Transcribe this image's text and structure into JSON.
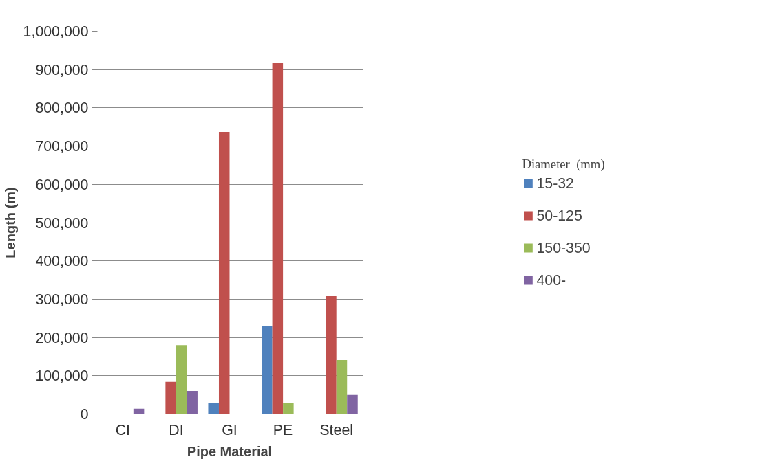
{
  "chart_data": {
    "type": "bar",
    "xlabel": "Pipe Material",
    "ylabel": "Length (m)",
    "legend_title": "Diameter  (mm)",
    "categories": [
      "CI",
      "DI",
      "GI",
      "PE",
      "Steel"
    ],
    "series": [
      {
        "name": "15-32",
        "color": "#4f81bd",
        "values": [
          null,
          null,
          28000,
          230000,
          null
        ]
      },
      {
        "name": "50-125",
        "color": "#c0504d",
        "values": [
          null,
          84000,
          737000,
          917000,
          308000
        ]
      },
      {
        "name": "150-350",
        "color": "#9bbb59",
        "values": [
          null,
          180000,
          null,
          28000,
          141000
        ]
      },
      {
        "name": "400-",
        "color": "#8064a2",
        "values": [
          14000,
          60000,
          null,
          null,
          50000
        ]
      }
    ],
    "ylim": [
      0,
      1000000
    ],
    "yticks": [
      0,
      {
        "value": 100000,
        "label": "100,000"
      },
      {
        "value": 200000,
        "label": "200,000"
      },
      {
        "value": 300000,
        "label": "300,000"
      },
      {
        "value": 400000,
        "label": "400,000"
      },
      {
        "value": 500000,
        "label": "500,000"
      },
      {
        "value": 600000,
        "label": "600,000"
      },
      {
        "value": 700000,
        "label": "700,000"
      },
      {
        "value": 800000,
        "label": "800,000"
      },
      {
        "value": 900000,
        "label": "900,000"
      },
      {
        "value": 1000000,
        "label": "1,000,000"
      }
    ],
    "grid": "y",
    "legend": "right"
  }
}
